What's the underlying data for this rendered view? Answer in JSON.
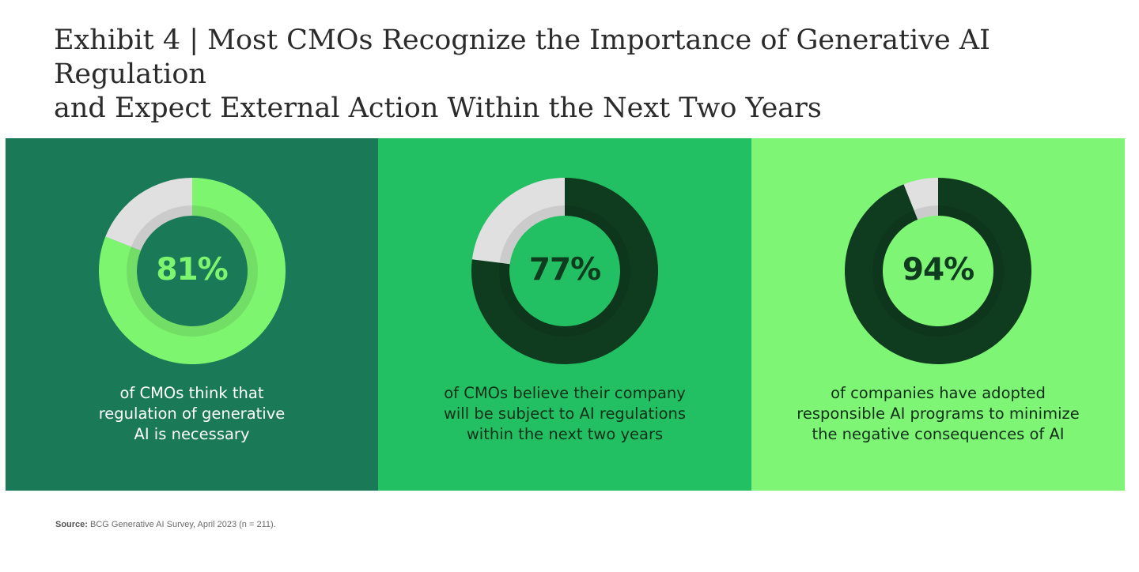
{
  "title": {
    "line1": "Exhibit 4 | Most CMOs Recognize the Importance of Generative AI Regulation",
    "line2": "and Expect External Action Within the Next Two Years"
  },
  "colors": {
    "panel_dark": "#1a7a58",
    "panel_mid": "#22c063",
    "panel_light": "#7ff576",
    "arc_light_green": "#7ef56f",
    "arc_dark_green": "#0f3c1f",
    "remainder_gray": "#e0e0e0"
  },
  "chart_data": [
    {
      "type": "pie",
      "style": "donut",
      "value_label": "81%",
      "values": [
        81,
        19
      ],
      "caption": [
        "of CMOs think that",
        "regulation of generative",
        "AI is necessary"
      ]
    },
    {
      "type": "pie",
      "style": "donut",
      "value_label": "77%",
      "values": [
        77,
        23
      ],
      "caption": [
        "of CMOs believe their company",
        "will be subject to AI regulations",
        "within the next two years"
      ]
    },
    {
      "type": "pie",
      "style": "donut",
      "value_label": "94%",
      "values": [
        94,
        6
      ],
      "caption": [
        "of companies have adopted",
        "responsible AI programs to minimize",
        "the negative consequences of AI"
      ]
    }
  ],
  "source": {
    "label": "Source:",
    "text": "BCG Generative AI Survey, April 2023 (n = 211)."
  }
}
